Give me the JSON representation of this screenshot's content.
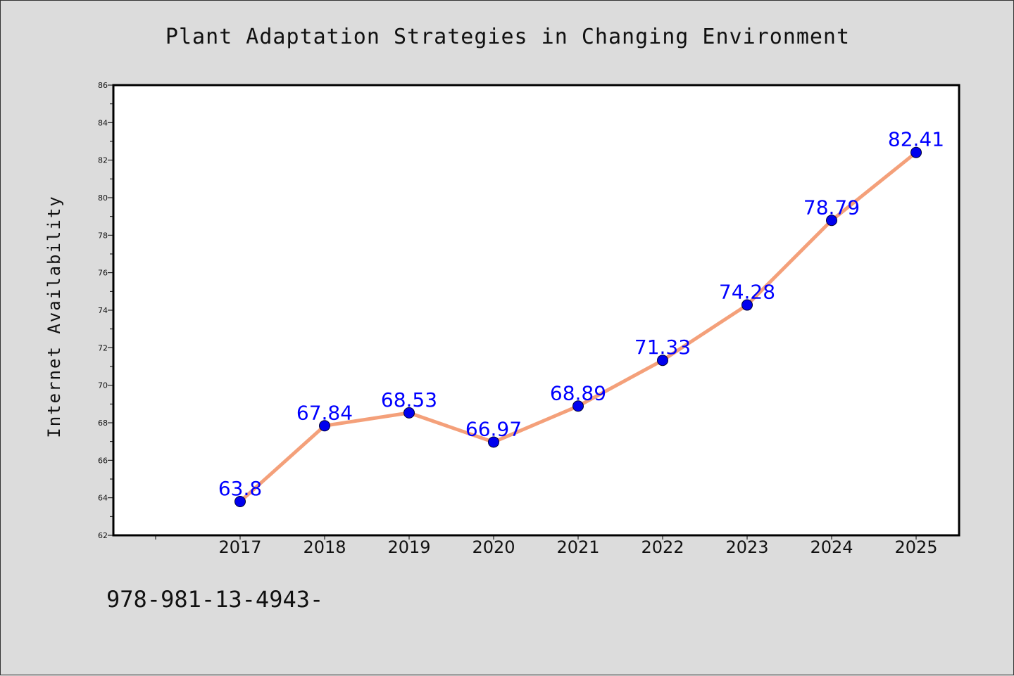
{
  "chart_data": {
    "type": "line",
    "title": "Plant Adaptation Strategies in Changing Environment",
    "ylabel": "Internet Availability",
    "xlabel": "",
    "categories": [
      "2017",
      "2018",
      "2019",
      "2020",
      "2021",
      "2022",
      "2023",
      "2024",
      "2025"
    ],
    "values": [
      63.8,
      67.84,
      68.53,
      66.97,
      68.89,
      71.33,
      74.28,
      78.79,
      82.41
    ],
    "data_labels": [
      "63.8",
      "67.84",
      "68.53",
      "66.97",
      "68.89",
      "71.33",
      "74.28",
      "78.79",
      "82.41"
    ],
    "ylim": [
      62,
      86
    ],
    "yticks": [
      62,
      64,
      66,
      68,
      70,
      72,
      74,
      76,
      78,
      80,
      82,
      84,
      86
    ],
    "grid": false,
    "legend": "none",
    "colors": {
      "line": "#f4a07a",
      "marker": "#0000ee",
      "label": "#0000ff",
      "background": "#dcdcdc",
      "plot_background": "#ffffff"
    }
  },
  "footer_text": "978-981-13-4943-"
}
